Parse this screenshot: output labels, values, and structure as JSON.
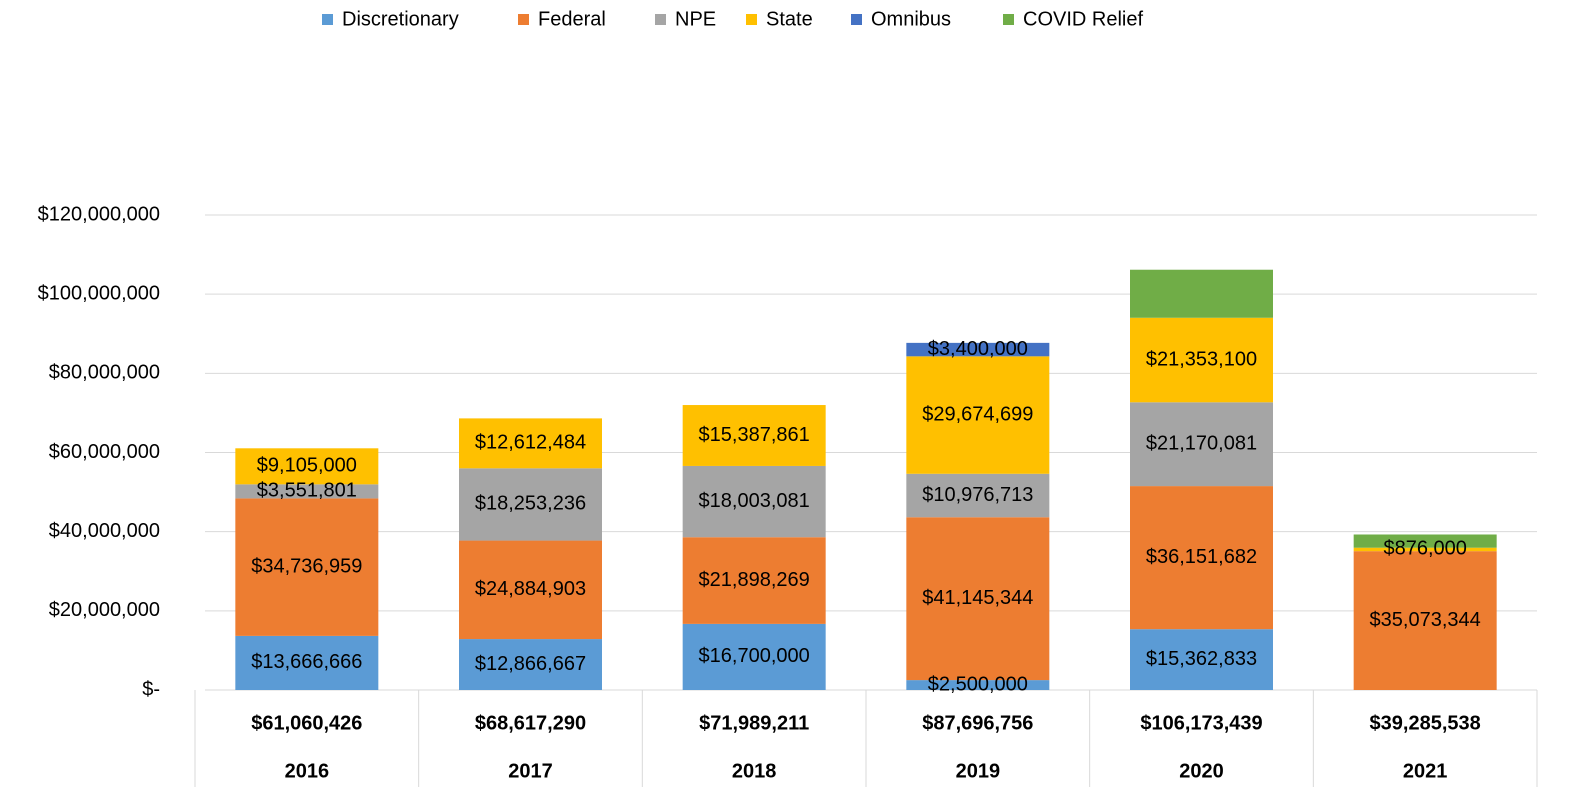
{
  "chart_data": {
    "type": "stacked_bar",
    "categories": [
      "2016",
      "2017",
      "2018",
      "2019",
      "2020",
      "2021"
    ],
    "totals": [
      61060426,
      68617290,
      71989211,
      87696756,
      106173439,
      39285538
    ],
    "total_labels": [
      "$61,060,426",
      "$68,617,290",
      "$71,989,211",
      "$87,696,756",
      "$106,173,439",
      "$39,285,538"
    ],
    "series": [
      {
        "name": "Discretionary",
        "color": "#5b9bd5",
        "values": [
          13666666,
          12866667,
          16700000,
          2500000,
          15362833,
          null
        ],
        "value_labels": [
          "$13,666,666",
          "$12,866,667",
          "$16,700,000",
          "$2,500,000",
          "$15,362,833",
          null
        ]
      },
      {
        "name": "Federal",
        "color": "#ed7d31",
        "values": [
          34736959,
          24884903,
          21898269,
          41145344,
          36151682,
          35073344
        ],
        "value_labels": [
          "$34,736,959",
          "$24,884,903",
          "$21,898,269",
          "$41,145,344",
          "$36,151,682",
          "$35,073,344"
        ]
      },
      {
        "name": "NPE",
        "color": "#a5a5a5",
        "values": [
          3551801,
          18253236,
          18003081,
          10976713,
          21170081,
          null
        ],
        "value_labels": [
          "$3,551,801",
          "$18,253,236",
          "$18,003,081",
          "$10,976,713",
          "$21,170,081",
          null
        ]
      },
      {
        "name": "State",
        "color": "#ffc000",
        "values": [
          9105000,
          12612484,
          15387861,
          29674699,
          21353100,
          876000
        ],
        "value_labels": [
          "$9,105,000",
          "$12,612,484",
          "$15,387,861",
          "$29,674,699",
          "$21,353,100",
          "$876,000"
        ]
      },
      {
        "name": "Omnibus",
        "color": "#4472c4",
        "values": [
          null,
          null,
          null,
          3400000,
          null,
          null
        ],
        "value_labels": [
          null,
          null,
          null,
          "$3,400,000",
          null,
          null
        ]
      },
      {
        "name": "COVID Relief",
        "color": "#70ad47",
        "values": [
          null,
          null,
          null,
          null,
          12135743,
          3336194
        ],
        "value_labels": [
          null,
          null,
          null,
          null,
          null,
          null
        ]
      }
    ],
    "ylim": [
      0,
      120000000
    ],
    "yticks": [
      {
        "value": 0,
        "label": "$-"
      },
      {
        "value": 20000000,
        "label": "$20,000,000"
      },
      {
        "value": 40000000,
        "label": "$40,000,000"
      },
      {
        "value": 60000000,
        "label": "$60,000,000"
      },
      {
        "value": 80000000,
        "label": "$80,000,000"
      },
      {
        "value": 100000000,
        "label": "$100,000,000"
      },
      {
        "value": 120000000,
        "label": "$120,000,000"
      }
    ],
    "grid": true,
    "legend": "top"
  }
}
